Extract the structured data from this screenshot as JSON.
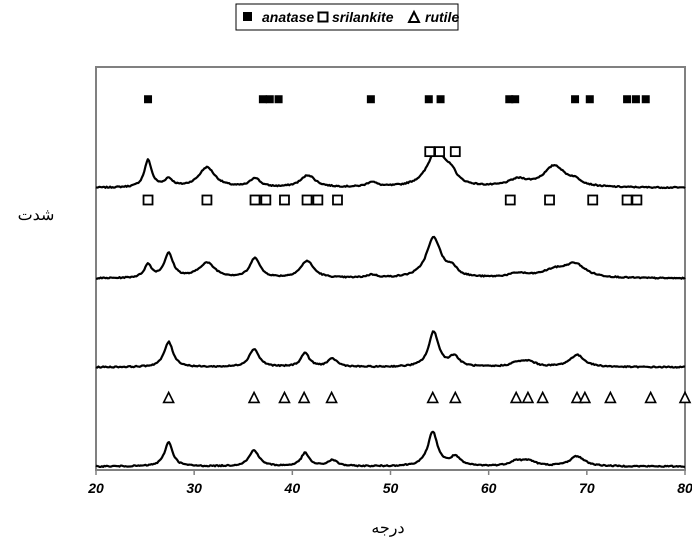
{
  "chart_data": {
    "type": "line",
    "title": "",
    "xlabel": "درجه",
    "ylabel": "شدت",
    "xlim": [
      20,
      80
    ],
    "xticks": [
      20,
      30,
      40,
      50,
      60,
      70,
      80
    ],
    "grid": false,
    "legend": {
      "placement": "top-center",
      "entries": [
        {
          "name": "anatase",
          "marker": "filled-square"
        },
        {
          "name": "srilankite",
          "marker": "open-square"
        },
        {
          "name": "rutile",
          "marker": "open-triangle"
        }
      ]
    },
    "series": [
      {
        "baseline": 0.72,
        "peaks": [
          [
            25.3,
            0.27,
            0.45
          ],
          [
            27.4,
            0.08,
            0.5
          ],
          [
            31.3,
            0.2,
            1.0
          ],
          [
            36.2,
            0.09,
            0.6
          ],
          [
            41.6,
            0.12,
            0.9
          ],
          [
            48.1,
            0.05,
            0.6
          ],
          [
            54.7,
            0.37,
            1.1
          ],
          [
            56.2,
            0.1,
            0.6
          ],
          [
            63.0,
            0.07,
            1.2
          ],
          [
            66.7,
            0.21,
            1.3
          ],
          [
            68.8,
            0.05,
            0.8
          ]
        ]
      },
      {
        "baseline": 0.5,
        "peaks": [
          [
            25.3,
            0.13,
            0.45
          ],
          [
            27.4,
            0.24,
            0.55
          ],
          [
            31.3,
            0.15,
            1.0
          ],
          [
            36.2,
            0.2,
            0.6
          ],
          [
            41.5,
            0.17,
            0.8
          ],
          [
            48.1,
            0.03,
            0.6
          ],
          [
            54.4,
            0.4,
            0.9
          ],
          [
            56.3,
            0.08,
            0.6
          ],
          [
            63.0,
            0.04,
            1.2
          ],
          [
            66.7,
            0.07,
            1.5
          ],
          [
            68.8,
            0.13,
            1.3
          ]
        ]
      },
      {
        "baseline": 0.3,
        "peaks": [
          [
            27.4,
            0.25,
            0.55
          ],
          [
            36.1,
            0.18,
            0.6
          ],
          [
            41.3,
            0.14,
            0.5
          ],
          [
            44.1,
            0.08,
            0.6
          ],
          [
            54.4,
            0.35,
            0.6
          ],
          [
            56.5,
            0.1,
            0.6
          ],
          [
            62.9,
            0.04,
            0.8
          ],
          [
            64.1,
            0.05,
            0.8
          ],
          [
            69.0,
            0.12,
            0.9
          ]
        ]
      },
      {
        "baseline": 0.035,
        "peaks": [
          [
            27.4,
            0.24,
            0.5
          ],
          [
            36.1,
            0.16,
            0.6
          ],
          [
            41.3,
            0.13,
            0.5
          ],
          [
            44.1,
            0.06,
            0.6
          ],
          [
            54.3,
            0.34,
            0.6
          ],
          [
            56.6,
            0.09,
            0.6
          ],
          [
            62.8,
            0.05,
            0.8
          ],
          [
            64.1,
            0.05,
            0.8
          ],
          [
            69.0,
            0.1,
            0.9
          ]
        ]
      }
    ],
    "marker_rows": [
      {
        "marker": "filled-square",
        "y": 0.92,
        "x": [
          25.3,
          37.0,
          37.7,
          38.6,
          48.0,
          53.9,
          55.1,
          62.1,
          62.7,
          68.8,
          70.3,
          74.1,
          75.0,
          76.0
        ]
      },
      {
        "marker": "open-square",
        "y": 0.79,
        "x": [
          54.0,
          55.0,
          56.6
        ]
      },
      {
        "marker": "open-square",
        "y": 0.67,
        "x": [
          25.3,
          31.3,
          36.2,
          37.3,
          39.2,
          41.5,
          42.6,
          44.6,
          62.2,
          66.2,
          70.6,
          74.1,
          75.1
        ]
      },
      {
        "marker": "open-triangle",
        "y": 0.18,
        "x": [
          27.4,
          36.1,
          39.2,
          41.2,
          44.0,
          54.3,
          56.6,
          62.8,
          64.0,
          65.5,
          69.0,
          69.8,
          72.4,
          76.5,
          80.0
        ]
      }
    ]
  }
}
